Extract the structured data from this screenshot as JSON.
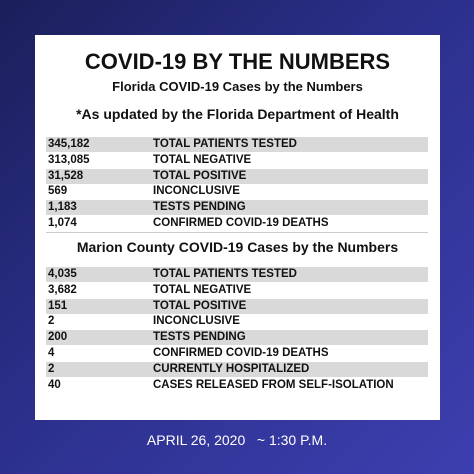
{
  "header": {
    "title": "COVID-19 BY THE NUMBERS",
    "subtitle": "Florida COVID-19 Cases by the Numbers",
    "note": "*As updated by the Florida Department of Health"
  },
  "florida": {
    "rows": [
      [
        "345,182",
        "TOTAL PATIENTS TESTED"
      ],
      [
        "313,085",
        "TOTAL NEGATIVE"
      ],
      [
        "31,528",
        "TOTAL POSITIVE"
      ],
      [
        "569",
        "INCONCLUSIVE"
      ],
      [
        "1,183",
        "TESTS PENDING"
      ],
      [
        "1,074",
        "CONFIRMED COVID-19 DEATHS"
      ]
    ]
  },
  "marion": {
    "heading": "Marion County COVID-19 Cases by the Numbers",
    "rows": [
      [
        "4,035",
        "TOTAL PATIENTS TESTED"
      ],
      [
        "3,682",
        "TOTAL NEGATIVE"
      ],
      [
        "151",
        "TOTAL POSITIVE"
      ],
      [
        "2",
        "INCONCLUSIVE"
      ],
      [
        "200",
        "TESTS PENDING"
      ],
      [
        "4",
        "CONFIRMED COVID-19 DEATHS"
      ],
      [
        "2",
        "CURRENTLY HOSPITALIZED"
      ],
      [
        "40",
        "CASES RELEASED FROM SELF-ISOLATION"
      ]
    ]
  },
  "footer": {
    "date": "APRIL 26, 2020",
    "time": "~ 1:30 P.M."
  }
}
